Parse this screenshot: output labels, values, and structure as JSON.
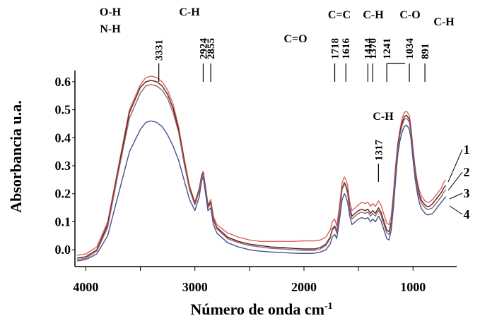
{
  "chart_data": {
    "type": "line",
    "xlabel": "Número de onda",
    "xlabel_unit": "cm",
    "xlabel_unit_exp": "-1",
    "ylabel": "Absorbancia u.a.",
    "xlim": [
      4100,
      600
    ],
    "ylim": [
      -0.06,
      0.64
    ],
    "x_reversed": true,
    "grid": false,
    "x_ticks": [
      4000,
      3000,
      2000,
      1000
    ],
    "y_ticks": [
      0.0,
      0.1,
      0.2,
      0.3,
      0.4,
      0.5,
      0.6
    ],
    "y_tick_labels": [
      "0.0",
      "0.1",
      "0.2",
      "0.3",
      "0.4",
      "0.5",
      "0.6"
    ],
    "peak_markers": [
      {
        "x": 3331,
        "label": "3331"
      },
      {
        "x": 2924,
        "label": "2924"
      },
      {
        "x": 2855,
        "label": "2855"
      },
      {
        "x": 1718,
        "label": "1718"
      },
      {
        "x": 1616,
        "label": "1616"
      },
      {
        "x": 1414,
        "label": "1414"
      },
      {
        "x": 1370,
        "label": "1370"
      },
      {
        "x": 1317,
        "label": "1317"
      },
      {
        "x": 1241,
        "label": "1241"
      },
      {
        "x": 1034,
        "label": "1034"
      },
      {
        "x": 891,
        "label": "891"
      }
    ],
    "group_labels": [
      {
        "text": "O-H"
      },
      {
        "text": "N-H"
      },
      {
        "text": "C-H"
      },
      {
        "text": "C=C"
      },
      {
        "text": "C-H"
      },
      {
        "text": "C-O"
      },
      {
        "text": "C-H"
      },
      {
        "text": "C=O"
      },
      {
        "text": "C-H"
      }
    ],
    "series": [
      {
        "name": "1",
        "color": "#e06060",
        "x": [
          4080,
          4000,
          3900,
          3800,
          3700,
          3600,
          3500,
          3450,
          3400,
          3350,
          3300,
          3250,
          3200,
          3150,
          3100,
          3050,
          3000,
          2960,
          2940,
          2924,
          2900,
          2880,
          2855,
          2830,
          2800,
          2700,
          2600,
          2500,
          2400,
          2300,
          2200,
          2100,
          2000,
          1950,
          1900,
          1850,
          1800,
          1760,
          1740,
          1718,
          1700,
          1680,
          1650,
          1630,
          1616,
          1600,
          1580,
          1560,
          1530,
          1500,
          1470,
          1440,
          1414,
          1390,
          1370,
          1345,
          1317,
          1295,
          1270,
          1241,
          1220,
          1200,
          1180,
          1160,
          1140,
          1120,
          1100,
          1080,
          1060,
          1040,
          1034,
          1020,
          1000,
          980,
          960,
          940,
          920,
          900,
          891,
          870,
          850,
          820,
          800,
          780,
          760,
          740,
          720,
          700
        ],
        "values": [
          -0.02,
          -0.015,
          0.01,
          0.1,
          0.3,
          0.5,
          0.59,
          0.615,
          0.62,
          0.615,
          0.6,
          0.57,
          0.52,
          0.44,
          0.33,
          0.23,
          0.17,
          0.22,
          0.265,
          0.28,
          0.22,
          0.16,
          0.18,
          0.12,
          0.09,
          0.06,
          0.045,
          0.035,
          0.03,
          0.03,
          0.03,
          0.03,
          0.032,
          0.032,
          0.032,
          0.035,
          0.045,
          0.07,
          0.1,
          0.11,
          0.085,
          0.14,
          0.24,
          0.26,
          0.25,
          0.23,
          0.17,
          0.14,
          0.15,
          0.16,
          0.17,
          0.165,
          0.17,
          0.155,
          0.165,
          0.155,
          0.175,
          0.16,
          0.13,
          0.095,
          0.09,
          0.12,
          0.2,
          0.3,
          0.38,
          0.43,
          0.47,
          0.49,
          0.495,
          0.485,
          0.48,
          0.44,
          0.36,
          0.29,
          0.24,
          0.21,
          0.19,
          0.18,
          0.175,
          0.17,
          0.17,
          0.18,
          0.19,
          0.2,
          0.21,
          0.22,
          0.24,
          0.25
        ]
      },
      {
        "name": "2",
        "color": "#5a1e1e",
        "x": [
          4080,
          4000,
          3900,
          3800,
          3700,
          3600,
          3500,
          3450,
          3400,
          3350,
          3300,
          3250,
          3200,
          3150,
          3100,
          3050,
          3000,
          2960,
          2940,
          2924,
          2900,
          2880,
          2855,
          2830,
          2800,
          2700,
          2600,
          2500,
          2400,
          2300,
          2200,
          2100,
          2000,
          1950,
          1900,
          1850,
          1800,
          1760,
          1740,
          1718,
          1700,
          1680,
          1650,
          1630,
          1616,
          1600,
          1580,
          1560,
          1530,
          1500,
          1470,
          1440,
          1414,
          1390,
          1370,
          1345,
          1317,
          1295,
          1270,
          1241,
          1220,
          1200,
          1180,
          1160,
          1140,
          1120,
          1100,
          1080,
          1060,
          1040,
          1034,
          1020,
          1000,
          980,
          960,
          940,
          920,
          900,
          891,
          870,
          850,
          820,
          800,
          780,
          760,
          740,
          720,
          700
        ],
        "values": [
          -0.03,
          -0.025,
          0.0,
          0.09,
          0.29,
          0.49,
          0.58,
          0.6,
          0.605,
          0.6,
          0.585,
          0.555,
          0.505,
          0.43,
          0.32,
          0.22,
          0.165,
          0.215,
          0.26,
          0.275,
          0.215,
          0.155,
          0.17,
          0.11,
          0.08,
          0.045,
          0.03,
          0.02,
          0.015,
          0.01,
          0.008,
          0.005,
          0.003,
          0.003,
          0.003,
          0.008,
          0.02,
          0.045,
          0.075,
          0.085,
          0.065,
          0.12,
          0.22,
          0.24,
          0.23,
          0.21,
          0.15,
          0.12,
          0.13,
          0.14,
          0.145,
          0.14,
          0.145,
          0.13,
          0.14,
          0.13,
          0.15,
          0.135,
          0.105,
          0.07,
          0.065,
          0.1,
          0.18,
          0.28,
          0.37,
          0.42,
          0.455,
          0.475,
          0.48,
          0.47,
          0.465,
          0.43,
          0.35,
          0.28,
          0.23,
          0.195,
          0.175,
          0.165,
          0.16,
          0.155,
          0.155,
          0.165,
          0.175,
          0.185,
          0.195,
          0.205,
          0.22,
          0.23
        ]
      },
      {
        "name": "3",
        "color": "#8f6a6a",
        "x": [
          4080,
          4000,
          3900,
          3800,
          3700,
          3600,
          3500,
          3450,
          3400,
          3350,
          3300,
          3250,
          3200,
          3150,
          3100,
          3050,
          3000,
          2960,
          2940,
          2924,
          2900,
          2880,
          2855,
          2830,
          2800,
          2700,
          2600,
          2500,
          2400,
          2300,
          2200,
          2100,
          2000,
          1950,
          1900,
          1850,
          1800,
          1760,
          1740,
          1718,
          1700,
          1680,
          1650,
          1630,
          1616,
          1600,
          1580,
          1560,
          1530,
          1500,
          1470,
          1440,
          1414,
          1390,
          1370,
          1345,
          1317,
          1295,
          1270,
          1241,
          1220,
          1200,
          1180,
          1160,
          1140,
          1120,
          1100,
          1080,
          1060,
          1040,
          1034,
          1020,
          1000,
          980,
          960,
          940,
          920,
          900,
          891,
          870,
          850,
          820,
          800,
          780,
          760,
          740,
          720,
          700
        ],
        "values": [
          -0.035,
          -0.03,
          -0.005,
          0.08,
          0.28,
          0.47,
          0.56,
          0.585,
          0.59,
          0.585,
          0.57,
          0.54,
          0.49,
          0.42,
          0.31,
          0.215,
          0.16,
          0.21,
          0.255,
          0.27,
          0.21,
          0.15,
          0.165,
          0.105,
          0.075,
          0.04,
          0.025,
          0.015,
          0.01,
          0.005,
          0.003,
          0.0,
          -0.002,
          -0.002,
          -0.002,
          0.003,
          0.015,
          0.04,
          0.07,
          0.08,
          0.06,
          0.115,
          0.215,
          0.235,
          0.225,
          0.2,
          0.14,
          0.11,
          0.12,
          0.13,
          0.135,
          0.13,
          0.135,
          0.12,
          0.13,
          0.12,
          0.14,
          0.125,
          0.095,
          0.06,
          0.055,
          0.09,
          0.17,
          0.27,
          0.36,
          0.41,
          0.445,
          0.465,
          0.47,
          0.46,
          0.455,
          0.42,
          0.34,
          0.27,
          0.22,
          0.185,
          0.165,
          0.155,
          0.15,
          0.145,
          0.145,
          0.15,
          0.16,
          0.17,
          0.18,
          0.19,
          0.205,
          0.215
        ]
      },
      {
        "name": "4",
        "color": "#4a4f8a",
        "x": [
          4080,
          4000,
          3900,
          3800,
          3700,
          3600,
          3500,
          3450,
          3400,
          3350,
          3300,
          3250,
          3200,
          3150,
          3100,
          3050,
          3000,
          2960,
          2940,
          2924,
          2900,
          2880,
          2855,
          2830,
          2800,
          2700,
          2600,
          2500,
          2400,
          2300,
          2200,
          2100,
          2000,
          1950,
          1900,
          1850,
          1800,
          1760,
          1740,
          1718,
          1700,
          1680,
          1650,
          1630,
          1616,
          1600,
          1580,
          1560,
          1530,
          1500,
          1470,
          1440,
          1414,
          1390,
          1370,
          1345,
          1317,
          1295,
          1270,
          1241,
          1220,
          1200,
          1180,
          1160,
          1140,
          1120,
          1100,
          1080,
          1060,
          1040,
          1034,
          1020,
          1000,
          980,
          960,
          940,
          920,
          900,
          891,
          870,
          850,
          820,
          800,
          780,
          760,
          740,
          720,
          700
        ],
        "values": [
          -0.04,
          -0.035,
          -0.015,
          0.05,
          0.2,
          0.35,
          0.43,
          0.455,
          0.46,
          0.455,
          0.44,
          0.41,
          0.37,
          0.32,
          0.25,
          0.18,
          0.14,
          0.19,
          0.245,
          0.26,
          0.195,
          0.14,
          0.15,
          0.09,
          0.06,
          0.025,
          0.01,
          0.0,
          -0.005,
          -0.008,
          -0.01,
          -0.012,
          -0.013,
          -0.013,
          -0.012,
          -0.008,
          0.0,
          0.02,
          0.045,
          0.055,
          0.04,
          0.09,
          0.18,
          0.2,
          0.19,
          0.17,
          0.12,
          0.09,
          0.1,
          0.11,
          0.115,
          0.11,
          0.115,
          0.1,
          0.11,
          0.1,
          0.12,
          0.105,
          0.075,
          0.04,
          0.035,
          0.07,
          0.15,
          0.25,
          0.34,
          0.39,
          0.42,
          0.44,
          0.445,
          0.435,
          0.43,
          0.4,
          0.32,
          0.25,
          0.2,
          0.165,
          0.145,
          0.135,
          0.13,
          0.125,
          0.125,
          0.13,
          0.14,
          0.15,
          0.16,
          0.17,
          0.18,
          0.19
        ]
      }
    ]
  }
}
